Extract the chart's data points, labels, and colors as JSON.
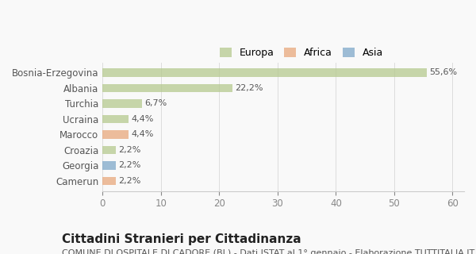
{
  "categories": [
    "Bosnia-Erzegovina",
    "Albania",
    "Turchia",
    "Ucraina",
    "Marocco",
    "Croazia",
    "Georgia",
    "Camerun"
  ],
  "values": [
    55.6,
    22.2,
    6.7,
    4.4,
    4.4,
    2.2,
    2.2,
    2.2
  ],
  "labels": [
    "55,6%",
    "22,2%",
    "6,7%",
    "4,4%",
    "4,4%",
    "2,2%",
    "2,2%",
    "2,2%"
  ],
  "bar_colors": [
    "#b5c98e",
    "#b5c98e",
    "#b5c98e",
    "#b5c98e",
    "#e8a87c",
    "#b5c98e",
    "#7fa8c9",
    "#e8a87c"
  ],
  "legend": [
    {
      "label": "Europa",
      "color": "#b5c98e"
    },
    {
      "label": "Africa",
      "color": "#e8a87c"
    },
    {
      "label": "Asia",
      "color": "#7fa8c9"
    }
  ],
  "xlim": [
    0,
    62
  ],
  "xticks": [
    0,
    10,
    20,
    30,
    40,
    50,
    60
  ],
  "title": "Cittadini Stranieri per Cittadinanza",
  "subtitle": "COMUNE DI OSPITALE DI CADORE (BL) - Dati ISTAT al 1° gennaio - Elaborazione TUTTITALIA.IT",
  "background_color": "#f9f9f9",
  "bar_alpha": 0.75,
  "title_fontsize": 11,
  "subtitle_fontsize": 8,
  "tick_label_fontsize": 8.5,
  "label_fontsize": 8,
  "legend_fontsize": 9
}
